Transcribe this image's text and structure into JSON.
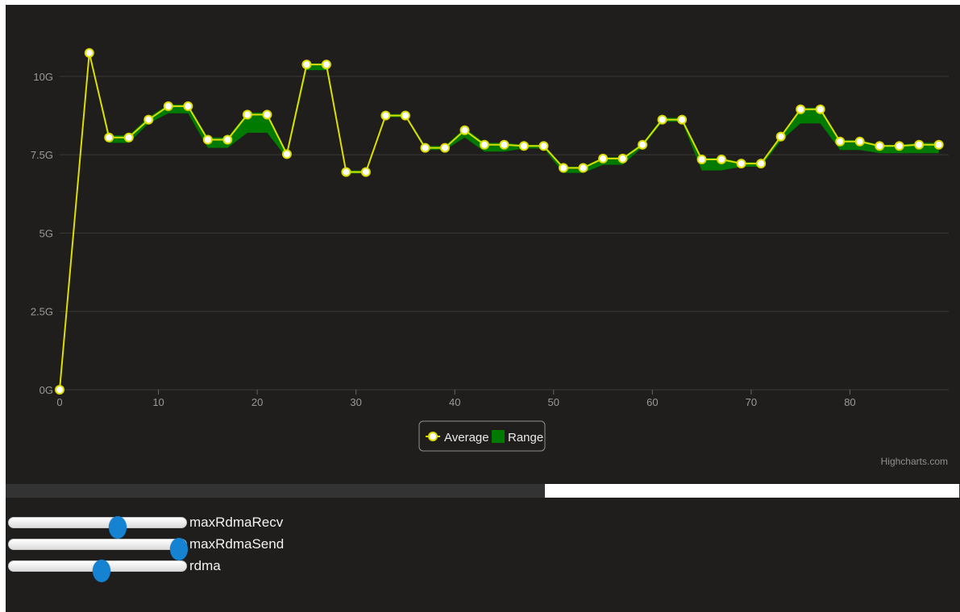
{
  "colors": {
    "background": "#1f1e1c",
    "average_line": "#dddd00",
    "range_fill": "#007a00",
    "marker_fill": "#ffffff",
    "grid": "#3a3936",
    "axis_label": "#999999",
    "slider_thumb": "#1682d2"
  },
  "chart_data": {
    "type": "line",
    "title": "",
    "xlabel": "",
    "ylabel": "",
    "xlim": [
      0,
      90
    ],
    "ylim": [
      0,
      11
    ],
    "x_ticks": [
      0,
      10,
      20,
      30,
      40,
      50,
      60,
      70,
      80
    ],
    "y_ticks": [
      {
        "value": 0,
        "label": "0G"
      },
      {
        "value": 2.5,
        "label": "2.5G"
      },
      {
        "value": 5,
        "label": "5G"
      },
      {
        "value": 7.5,
        "label": "7.5G"
      },
      {
        "value": 10,
        "label": "10G"
      }
    ],
    "grid": true,
    "legend": {
      "position": "bottom-center",
      "items": [
        "Average",
        "Range"
      ]
    },
    "credits": "Highcharts.com",
    "series": [
      {
        "name": "Average",
        "type": "line",
        "x": [
          0,
          3,
          5,
          7,
          9,
          11,
          13,
          15,
          17,
          19,
          21,
          23,
          25,
          27,
          29,
          31,
          33,
          35,
          37,
          39,
          41,
          43,
          45,
          47,
          49,
          51,
          53,
          55,
          57,
          59,
          61,
          63,
          65,
          67,
          69,
          71,
          73,
          75,
          77,
          79,
          81,
          83,
          85,
          87,
          89
        ],
        "values": [
          0,
          10.75,
          8.05,
          8.05,
          8.62,
          9.05,
          9.05,
          7.98,
          7.98,
          8.78,
          8.78,
          7.52,
          10.38,
          10.38,
          6.95,
          6.95,
          8.75,
          8.75,
          7.72,
          7.72,
          8.28,
          7.82,
          7.82,
          7.78,
          7.78,
          7.08,
          7.08,
          7.38,
          7.38,
          7.82,
          8.62,
          8.62,
          7.35,
          7.35,
          7.22,
          7.22,
          8.08,
          8.95,
          8.95,
          7.92,
          7.92,
          7.78,
          7.78,
          7.82,
          7.82
        ]
      },
      {
        "name": "Range",
        "type": "arearange",
        "x": [
          0,
          3,
          5,
          7,
          9,
          11,
          13,
          15,
          17,
          19,
          21,
          23,
          25,
          27,
          29,
          31,
          33,
          35,
          37,
          39,
          41,
          43,
          45,
          47,
          49,
          51,
          53,
          55,
          57,
          59,
          61,
          63,
          65,
          67,
          69,
          71,
          73,
          75,
          77,
          79,
          81,
          83,
          85,
          87,
          89
        ],
        "low": [
          0,
          10.7,
          7.88,
          7.88,
          8.5,
          8.82,
          8.82,
          7.72,
          7.72,
          8.2,
          8.2,
          7.4,
          10.2,
          10.2,
          6.9,
          6.9,
          8.7,
          8.7,
          7.65,
          7.65,
          8.05,
          7.6,
          7.6,
          7.7,
          7.7,
          6.92,
          6.92,
          7.18,
          7.18,
          7.75,
          8.55,
          8.55,
          7.0,
          7.0,
          7.12,
          7.12,
          7.95,
          8.5,
          8.5,
          7.65,
          7.65,
          7.55,
          7.55,
          7.55,
          7.55
        ],
        "high": [
          0,
          10.8,
          8.12,
          8.12,
          8.7,
          9.1,
          9.1,
          8.05,
          8.05,
          8.85,
          8.85,
          7.58,
          10.42,
          10.42,
          7.0,
          7.0,
          8.8,
          8.8,
          7.78,
          7.78,
          8.35,
          7.88,
          7.88,
          7.82,
          7.82,
          7.12,
          7.12,
          7.42,
          7.42,
          7.88,
          8.68,
          8.68,
          7.4,
          7.4,
          7.26,
          7.26,
          8.12,
          9.0,
          9.0,
          7.97,
          7.97,
          7.82,
          7.82,
          7.88,
          7.88
        ]
      }
    ]
  },
  "navigator": {
    "scroll_position": 0.565
  },
  "sliders": [
    {
      "label": "maxRdmaRecv",
      "value": 0.61
    },
    {
      "label": "maxRdmaSend",
      "value": 0.95
    },
    {
      "label": "rdma",
      "value": 0.52
    }
  ]
}
